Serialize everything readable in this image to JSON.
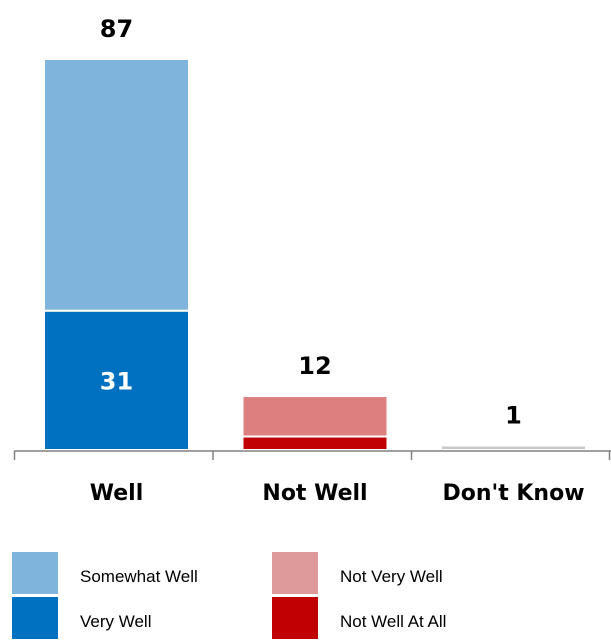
{
  "chart_data": {
    "type": "bar",
    "stacked": true,
    "categories": [
      "Well",
      "Not Well",
      "Don't Know"
    ],
    "totals": [
      87,
      12,
      1
    ],
    "series": [
      {
        "name": "Very Well",
        "color": "#0070C0",
        "values": [
          31,
          null,
          null
        ]
      },
      {
        "name": "Somewhat Well",
        "color": "#7FB4DC",
        "values": [
          56,
          null,
          null
        ]
      },
      {
        "name": "Not Well At All",
        "color": "#C00000",
        "values": [
          null,
          3,
          null
        ]
      },
      {
        "name": "Not Very Well",
        "color": "#DE7F7F",
        "values": [
          null,
          9,
          null
        ]
      },
      {
        "name": "Don't Know",
        "color": "#C8C8C8",
        "values": [
          null,
          null,
          1
        ]
      }
    ],
    "data_labels": {
      "Very Well": [
        31,
        null,
        null
      ]
    },
    "legend": [
      {
        "name": "Somewhat Well",
        "color": "#7FB4DC"
      },
      {
        "name": "Not Very Well",
        "color": "#DE9A9A"
      },
      {
        "name": "Very Well",
        "color": "#0070C0"
      },
      {
        "name": "Not Well At All",
        "color": "#C00000"
      }
    ],
    "legend_position": "bottom",
    "ylim": [
      0,
      87
    ],
    "grid": false,
    "title": "",
    "xlabel": "",
    "ylabel": ""
  }
}
